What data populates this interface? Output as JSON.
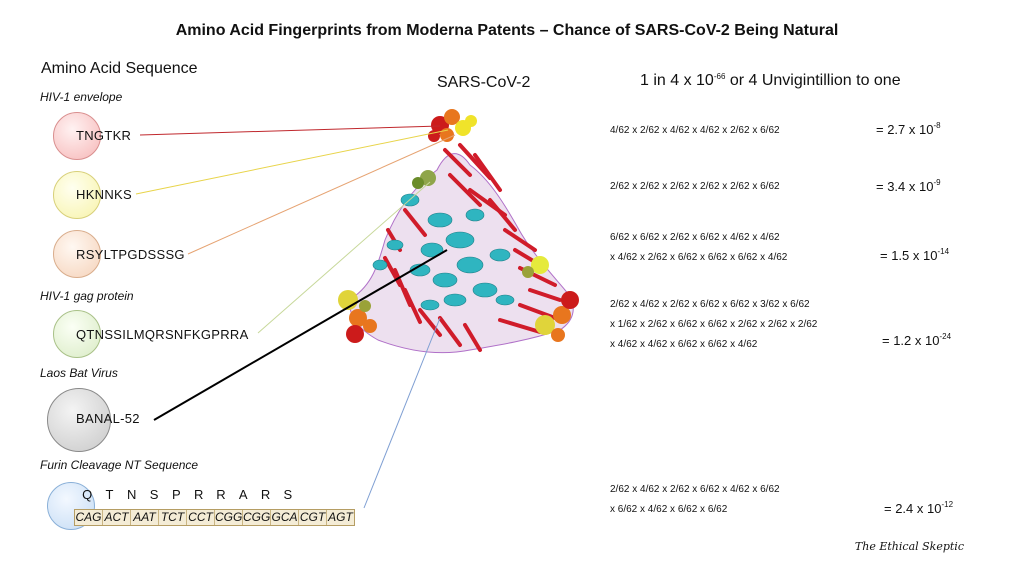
{
  "title": "Amino Acid Fingerprints from Moderna Patents – Chance of SARS-CoV-2 Being Natural",
  "left_heading": "Amino Acid Sequence",
  "virus_label": "SARS-CoV-2",
  "headline": {
    "prefix": "1 in 4 x 10",
    "exp": "-66",
    "suffix": " or 4 Unvigintillion to one"
  },
  "sections": {
    "hiv_envelope": "HIV-1 envelope",
    "hiv_gag": "HIV-1 gag protein",
    "laos_bat": "Laos Bat Virus",
    "furin": "Furin Cleavage NT Sequence"
  },
  "sequences": {
    "s1": "TNGTKR",
    "s2": "HKNNKS",
    "s3": "RSYLTPGDSSSG",
    "s4": "QTNSSILMQRSNFKGPRRA",
    "s5": "BANAL-52"
  },
  "furin_letters": [
    "Q",
    "T",
    "N",
    "S",
    "P",
    "R",
    "R",
    "A",
    "R",
    "S"
  ],
  "furin_codons": [
    "CAG",
    "ACT",
    "AAT",
    "TCT",
    "CCT",
    "CGG",
    "CGG",
    "GCA",
    "CGT",
    "AGT"
  ],
  "calculations": {
    "c1": [
      "4/62 x 2/62 x 4/62 x 4/62 x 2/62 x 6/62"
    ],
    "c2": [
      "2/62 x 2/62 x 2/62 x 2/62 x 2/62 x 6/62"
    ],
    "c3": [
      "6/62 x 6/62 x 2/62 x 6/62 x 4/62 x 4/62",
      "x 4/62 x 2/62 x 6/62 x 6/62 x 6/62 x 4/62"
    ],
    "c4": [
      "2/62 x 4/62 x 2/62 x 6/62 x 6/62 x 3/62 x 6/62",
      "x 1/62 x 2/62 x 6/62 x 6/62 x 2/62 x 2/62 x 2/62",
      "x 4/62 x 4/62 x 6/62 x 6/62 x 4/62"
    ],
    "c5": [
      "2/62 x 4/62 x 2/62 x 6/62 x 4/62 x 6/62",
      "x 6/62 x 4/62 x 6/62 x 6/62"
    ]
  },
  "results": {
    "r1": {
      "base": "= 2.7 x 10",
      "exp": "-8"
    },
    "r2": {
      "base": "= 3.4 x 10",
      "exp": "-9"
    },
    "r3": {
      "base": "= 1.5 x 10",
      "exp": "-14"
    },
    "r4": {
      "base": "= 1.2 x 10",
      "exp": "-24"
    },
    "r5": {
      "base": "= 2.4 x 10",
      "exp": "-12"
    }
  },
  "signature": "The Ethical Skeptic",
  "colors": {
    "red_line": "#c0282d",
    "yellow_line": "#e8d44a",
    "orange_line": "#e6a372",
    "green_line": "#c7d89a",
    "black_line": "#000000",
    "blue_line": "#7f9fd3"
  }
}
